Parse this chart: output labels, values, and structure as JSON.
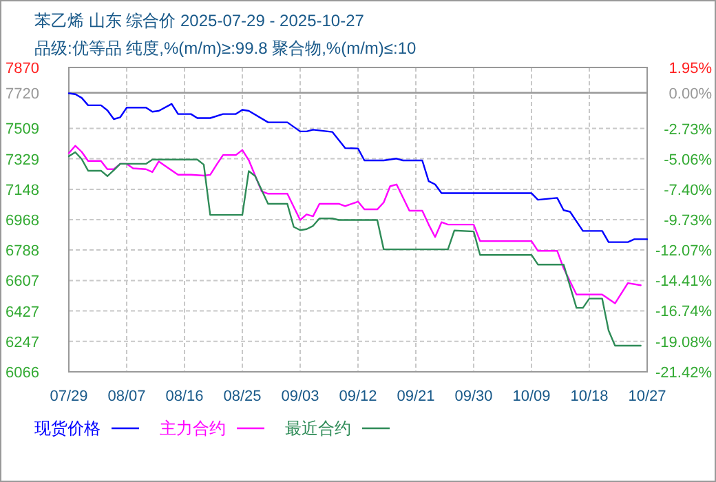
{
  "chart_data": {
    "type": "line",
    "title": "苯乙烯 山东 综合价 2025-07-29 - 2025-10-27",
    "subtitle": "品级:优等品 纯度,%(m/m)≥:99.8 聚合物,%(m/m)≤:10",
    "xlim": [
      "2025-07-29",
      "2025-10-27"
    ],
    "xticks": [
      {
        "value": "2025-07-29",
        "label": "07/29"
      },
      {
        "value": "2025-08-07",
        "label": "08/07"
      },
      {
        "value": "2025-08-16",
        "label": "08/16"
      },
      {
        "value": "2025-08-25",
        "label": "08/25"
      },
      {
        "value": "2025-09-03",
        "label": "09/03"
      },
      {
        "value": "2025-09-12",
        "label": "09/12"
      },
      {
        "value": "2025-09-21",
        "label": "09/21"
      },
      {
        "value": "2025-09-30",
        "label": "09/30"
      },
      {
        "value": "2025-10-09",
        "label": "10/09"
      },
      {
        "value": "2025-10-18",
        "label": "10/18"
      },
      {
        "value": "2025-10-27",
        "label": "10/27"
      }
    ],
    "ylim": [
      6066,
      7870
    ],
    "yticks": [
      6066,
      6247,
      6427,
      6607,
      6788,
      6968,
      7148,
      7329,
      7509,
      7720,
      7870
    ],
    "y2lim": [
      -21.42,
      1.95
    ],
    "y2ticks": [
      {
        "value": -21.42,
        "label": "-21.42%"
      },
      {
        "value": -19.08,
        "label": "-19.08%"
      },
      {
        "value": -16.74,
        "label": "-16.74%"
      },
      {
        "value": -14.41,
        "label": "-14.41%"
      },
      {
        "value": -12.07,
        "label": "-12.07%"
      },
      {
        "value": -9.73,
        "label": "-9.73%"
      },
      {
        "value": -7.4,
        "label": "-7.40%"
      },
      {
        "value": -5.06,
        "label": "-5.06%"
      },
      {
        "value": -2.73,
        "label": "-2.73%"
      },
      {
        "value": 0,
        "label": "0.00%"
      },
      {
        "value": 1.95,
        "label": "1.95%"
      }
    ],
    "ref_lines": [
      {
        "axis": "y",
        "value": 7720,
        "color": "#999999"
      }
    ],
    "grid": true,
    "legend": "bottom",
    "series": [
      {
        "name": "现货价格",
        "color": "#0000ff",
        "x": [
          "2025-07-29",
          "2025-07-30",
          "2025-07-31",
          "2025-08-01",
          "2025-08-03",
          "2025-08-04",
          "2025-08-05",
          "2025-08-06",
          "2025-08-07",
          "2025-08-10",
          "2025-08-11",
          "2025-08-12",
          "2025-08-14",
          "2025-08-15",
          "2025-08-17",
          "2025-08-18",
          "2025-08-20",
          "2025-08-22",
          "2025-08-24",
          "2025-08-25",
          "2025-08-26",
          "2025-08-29",
          "2025-09-01",
          "2025-09-03",
          "2025-09-04",
          "2025-09-05",
          "2025-09-08",
          "2025-09-10",
          "2025-09-12",
          "2025-09-13",
          "2025-09-16",
          "2025-09-18",
          "2025-09-19",
          "2025-09-22",
          "2025-09-23",
          "2025-09-24",
          "2025-09-25",
          "2025-10-09",
          "2025-10-10",
          "2025-10-13",
          "2025-10-14",
          "2025-10-15",
          "2025-10-17",
          "2025-10-20",
          "2025-10-21",
          "2025-10-24",
          "2025-10-25",
          "2025-10-27"
        ],
        "values": [
          7717,
          7712,
          7690,
          7646,
          7646,
          7616,
          7564,
          7575,
          7632,
          7632,
          7608,
          7613,
          7654,
          7594,
          7594,
          7570,
          7570,
          7594,
          7594,
          7619,
          7613,
          7545,
          7545,
          7491,
          7491,
          7501,
          7488,
          7392,
          7390,
          7319,
          7319,
          7330,
          7319,
          7319,
          7196,
          7177,
          7125,
          7125,
          7086,
          7097,
          7024,
          7015,
          6901,
          6901,
          6835,
          6835,
          6852,
          6852
        ]
      },
      {
        "name": "主力合约",
        "color": "#ff00ff",
        "x": [
          "2025-07-29",
          "2025-07-30",
          "2025-07-31",
          "2025-08-01",
          "2025-08-03",
          "2025-08-04",
          "2025-08-05",
          "2025-08-06",
          "2025-08-07",
          "2025-08-08",
          "2025-08-10",
          "2025-08-11",
          "2025-08-12",
          "2025-08-13",
          "2025-08-15",
          "2025-08-17",
          "2025-08-19",
          "2025-08-20",
          "2025-08-21",
          "2025-08-22",
          "2025-08-24",
          "2025-08-25",
          "2025-08-26",
          "2025-08-28",
          "2025-08-29",
          "2025-09-01",
          "2025-09-03",
          "2025-09-04",
          "2025-09-05",
          "2025-09-06",
          "2025-09-09",
          "2025-09-10",
          "2025-09-12",
          "2025-09-13",
          "2025-09-15",
          "2025-09-16",
          "2025-09-17",
          "2025-09-18",
          "2025-09-20",
          "2025-09-22",
          "2025-09-23",
          "2025-09-24",
          "2025-09-25",
          "2025-09-26",
          "2025-09-30",
          "2025-10-01",
          "2025-10-09",
          "2025-10-10",
          "2025-10-13",
          "2025-10-14",
          "2025-10-16",
          "2025-10-20",
          "2025-10-22",
          "2025-10-24",
          "2025-10-26"
        ],
        "values": [
          7362,
          7406,
          7370,
          7316,
          7316,
          7267,
          7267,
          7299,
          7299,
          7272,
          7267,
          7250,
          7313,
          7286,
          7234,
          7234,
          7229,
          7234,
          7294,
          7351,
          7351,
          7381,
          7321,
          7136,
          7122,
          7122,
          6966,
          6999,
          6988,
          7062,
          7062,
          7048,
          7075,
          7029,
          7029,
          7070,
          7166,
          7177,
          7021,
          7021,
          6939,
          6865,
          6953,
          6939,
          6939,
          6841,
          6841,
          6783,
          6783,
          6680,
          6524,
          6524,
          6472,
          6592,
          6579
        ]
      },
      {
        "name": "最近合约",
        "color": "#2e8b57",
        "x": [
          "2025-07-29",
          "2025-07-30",
          "2025-07-31",
          "2025-08-01",
          "2025-08-03",
          "2025-08-04",
          "2025-08-05",
          "2025-08-06",
          "2025-08-10",
          "2025-08-11",
          "2025-08-18",
          "2025-08-19",
          "2025-08-20",
          "2025-08-25",
          "2025-08-26",
          "2025-08-27",
          "2025-08-29",
          "2025-09-01",
          "2025-09-02",
          "2025-09-03",
          "2025-09-04",
          "2025-09-05",
          "2025-09-06",
          "2025-09-08",
          "2025-09-09",
          "2025-09-15",
          "2025-09-16",
          "2025-09-26",
          "2025-09-27",
          "2025-09-30",
          "2025-10-01",
          "2025-10-09",
          "2025-10-10",
          "2025-10-14",
          "2025-10-16",
          "2025-10-17",
          "2025-10-18",
          "2025-10-20",
          "2025-10-21",
          "2025-10-22",
          "2025-10-26"
        ],
        "values": [
          7343,
          7368,
          7327,
          7258,
          7258,
          7226,
          7261,
          7299,
          7299,
          7324,
          7324,
          7294,
          6996,
          6996,
          7256,
          7226,
          7062,
          7062,
          6925,
          6906,
          6912,
          6931,
          6975,
          6975,
          6966,
          6966,
          6792,
          6792,
          6904,
          6898,
          6759,
          6759,
          6702,
          6702,
          6445,
          6445,
          6500,
          6500,
          6311,
          6221,
          6221
        ]
      }
    ]
  }
}
